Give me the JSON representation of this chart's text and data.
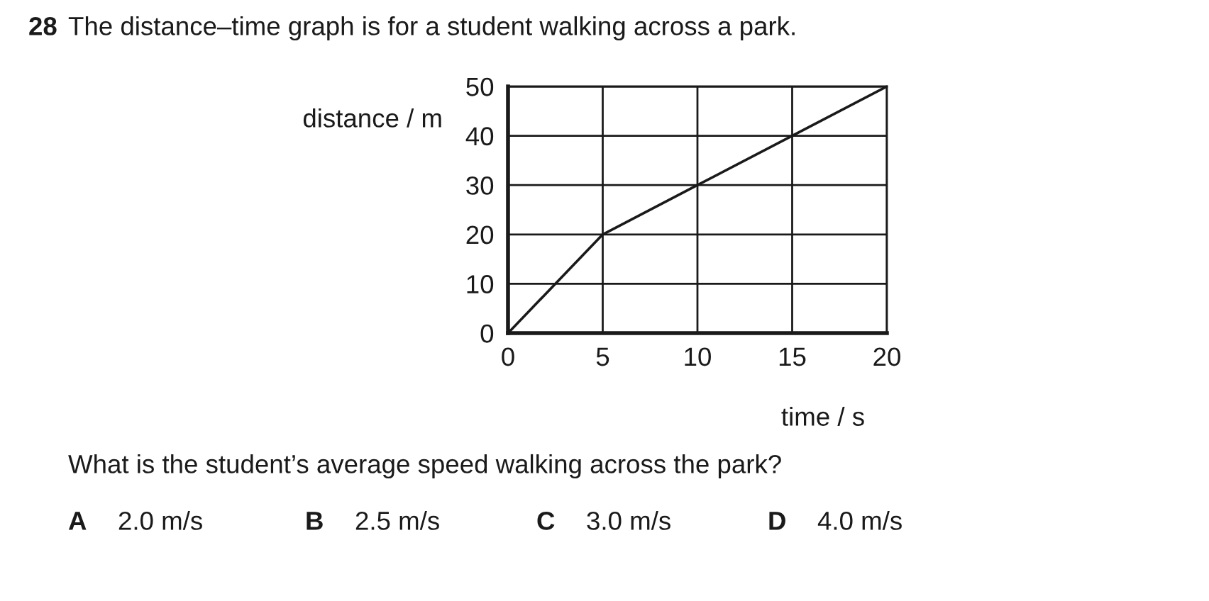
{
  "chart_data": {
    "type": "line",
    "title": "28 The distance–time graph is for a student walking across a park.",
    "xlabel": "time / s",
    "ylabel": "distance / m",
    "x": [
      0,
      5,
      10,
      15,
      20
    ],
    "series": [
      {
        "color": "#1a1a1a",
        "values": [
          0,
          20,
          30,
          40,
          50
        ]
      }
    ],
    "xlim": [
      0,
      20
    ],
    "ylim": [
      0,
      50
    ],
    "xticks": [
      0,
      5,
      10,
      15,
      20
    ],
    "yticks": [
      0,
      10,
      20,
      30,
      40,
      50
    ],
    "grid": true,
    "annotations": [
      "What is the student’s average speed walking across the park?",
      "A",
      "2.0 m/s",
      "B",
      "2.5 m/s",
      "C",
      "3.0 m/s",
      "D",
      "4.0 m/s"
    ]
  }
}
